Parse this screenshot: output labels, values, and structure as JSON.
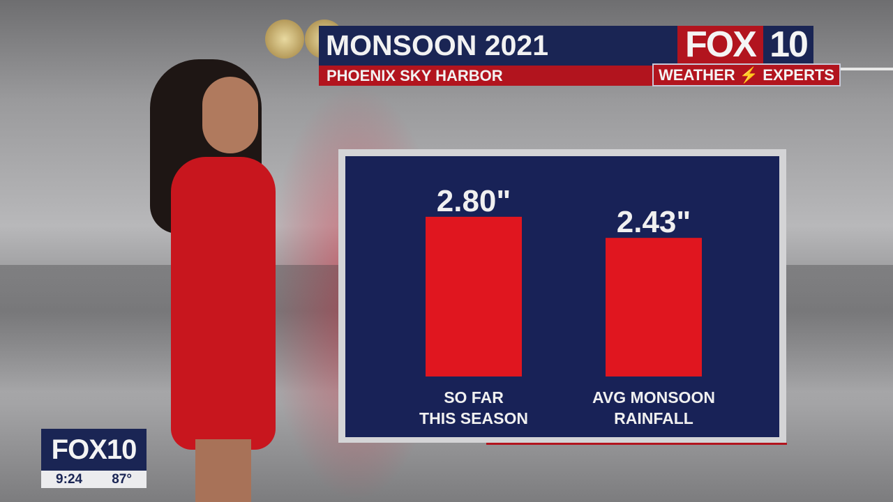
{
  "header": {
    "title": "MONSOON 2021",
    "subtitle": "PHOENIX SKY HARBOR"
  },
  "logo": {
    "fox": "FOX",
    "ten": "10",
    "tagline": "WEATHER",
    "tagline2": "EXPERTS",
    "lightning_icon": "lightning-bolt"
  },
  "bug": {
    "logo": "FOX10",
    "time": "9:24",
    "temp": "87°"
  },
  "colors": {
    "navy": "#1a2554",
    "red": "#b2141e",
    "bar": "#e0161f"
  },
  "chart_data": {
    "type": "bar",
    "title": "",
    "categories": [
      "SO FAR\nTHIS SEASON",
      "AVG MONSOON\nRAINFALL"
    ],
    "values": [
      2.8,
      2.43
    ],
    "data_labels": [
      "2.80\"",
      "2.43\""
    ],
    "ylim": [
      0,
      3.3
    ],
    "grid": false
  }
}
